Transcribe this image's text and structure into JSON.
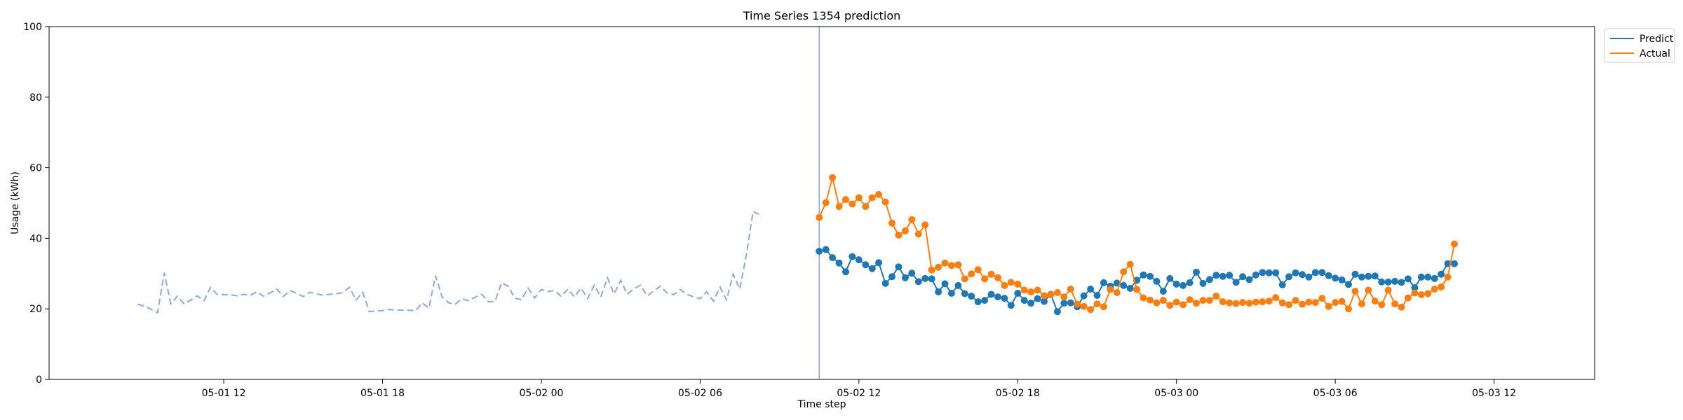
{
  "chart_data": {
    "type": "line",
    "title": "Time Series 1354 prediction",
    "xlabel": "Time step",
    "ylabel": "Usage (kWh)",
    "ylim": [
      0,
      100
    ],
    "yticks": [
      0,
      20,
      40,
      60,
      80,
      100
    ],
    "xlim_hours": [
      5.4,
      63.8
    ],
    "xticks": [
      {
        "h": 12,
        "label": "05-01 12"
      },
      {
        "h": 18,
        "label": "05-01 18"
      },
      {
        "h": 24,
        "label": "05-02 00"
      },
      {
        "h": 30,
        "label": "05-02 06"
      },
      {
        "h": 36,
        "label": "05-02 12"
      },
      {
        "h": 42,
        "label": "05-02 18"
      },
      {
        "h": 48,
        "label": "05-03 00"
      },
      {
        "h": 54,
        "label": "05-03 06"
      },
      {
        "h": 60,
        "label": "05-03 12"
      }
    ],
    "x_unit": "hours from 05-01 00:00",
    "vline_h": 34.5,
    "legend_position": "outside upper right",
    "history": {
      "start_h": 8.75,
      "step_h": 0.25,
      "color": "#8da9d4",
      "style": "dashed",
      "values": [
        21.3,
        20.8,
        19.9,
        18.9,
        30.2,
        21.4,
        23.6,
        21.4,
        22.5,
        23.7,
        22.3,
        26.1,
        24.1,
        24.0,
        24.0,
        23.7,
        24.1,
        23.8,
        24.8,
        23.6,
        24.5,
        25.6,
        23.5,
        25.2,
        24.4,
        23.5,
        24.7,
        24.2,
        23.9,
        24.1,
        24.3,
        24.6,
        26.1,
        22.5,
        24.7,
        19.2,
        19.4,
        19.5,
        19.8,
        19.7,
        19.6,
        19.6,
        19.5,
        21.7,
        20.2,
        29.4,
        23.4,
        21.7,
        21.3,
        22.9,
        22.3,
        23.3,
        24.1,
        22.0,
        22.1,
        27.4,
        26.4,
        23.0,
        22.6,
        25.9,
        23.1,
        25.5,
        24.9,
        25.2,
        23.5,
        25.6,
        23.4,
        25.9,
        22.9,
        26.7,
        23.4,
        28.8,
        24.2,
        28.1,
        24.1,
        25.7,
        26.7,
        23.7,
        25.1,
        26.4,
        24.5,
        24.0,
        25.5,
        24.1,
        23.4,
        22.9,
        24.8,
        22.2,
        26.2,
        22.5,
        29.8,
        25.6,
        35.4,
        47.6,
        46.7
      ]
    },
    "series": [
      {
        "name": "Predict",
        "color": "#1f77b4",
        "start_h": 34.5,
        "step_h": 0.25,
        "values": [
          36.3,
          36.8,
          34.5,
          33.0,
          30.5,
          34.8,
          33.9,
          32.5,
          31.4,
          33.1,
          27.2,
          29.1,
          31.9,
          28.8,
          30.1,
          27.7,
          28.6,
          28.5,
          24.8,
          27.1,
          24.4,
          26.6,
          24.3,
          23.6,
          22.0,
          22.4,
          24.1,
          23.4,
          23.0,
          21.0,
          24.4,
          22.4,
          21.6,
          22.9,
          22.1,
          24.1,
          19.2,
          21.6,
          21.7,
          20.6,
          23.7,
          25.6,
          23.8,
          27.4,
          26.4,
          27.3,
          26.6,
          25.8,
          28.1,
          29.6,
          29.2,
          27.8,
          25.0,
          28.6,
          27.0,
          26.6,
          27.4,
          30.4,
          27.2,
          28.3,
          29.5,
          29.2,
          29.5,
          27.5,
          29.1,
          28.3,
          29.6,
          30.3,
          30.2,
          30.2,
          26.8,
          29.1,
          30.2,
          29.7,
          29.0,
          30.3,
          30.3,
          29.4,
          28.7,
          28.2,
          26.9,
          29.8,
          29.0,
          29.2,
          29.3,
          27.6,
          27.6,
          27.8,
          27.5,
          28.5,
          26.0,
          29.0,
          29.0,
          28.6,
          29.8,
          32.8,
          32.8
        ]
      },
      {
        "name": "Actual",
        "color": "#ff7f0e",
        "start_h": 34.5,
        "step_h": 0.25,
        "values": [
          45.9,
          50.1,
          57.2,
          49.0,
          51.0,
          49.7,
          51.5,
          49.0,
          51.5,
          52.4,
          50.3,
          44.3,
          40.9,
          42.1,
          45.3,
          41.2,
          43.8,
          31.0,
          31.8,
          33.0,
          32.3,
          32.5,
          28.5,
          29.9,
          31.1,
          28.5,
          29.8,
          28.8,
          26.6,
          27.5,
          27.0,
          25.3,
          24.8,
          25.3,
          23.7,
          24.0,
          24.6,
          23.4,
          25.6,
          21.3,
          20.7,
          19.8,
          21.4,
          20.6,
          25.5,
          24.6,
          30.5,
          32.6,
          25.5,
          23.1,
          22.5,
          21.7,
          22.4,
          21.0,
          21.9,
          21.2,
          22.6,
          21.6,
          22.4,
          22.4,
          23.6,
          22.0,
          21.7,
          21.5,
          21.8,
          21.6,
          21.9,
          22.0,
          22.2,
          23.2,
          21.7,
          21.2,
          22.4,
          21.3,
          21.9,
          21.8,
          23.0,
          20.7,
          21.8,
          22.1,
          20.0,
          25.0,
          21.4,
          25.3,
          22.2,
          21.2,
          25.3,
          21.4,
          20.5,
          23.1,
          24.5,
          24.0,
          24.3,
          25.6,
          26.2,
          29.0,
          38.4
        ]
      }
    ]
  }
}
